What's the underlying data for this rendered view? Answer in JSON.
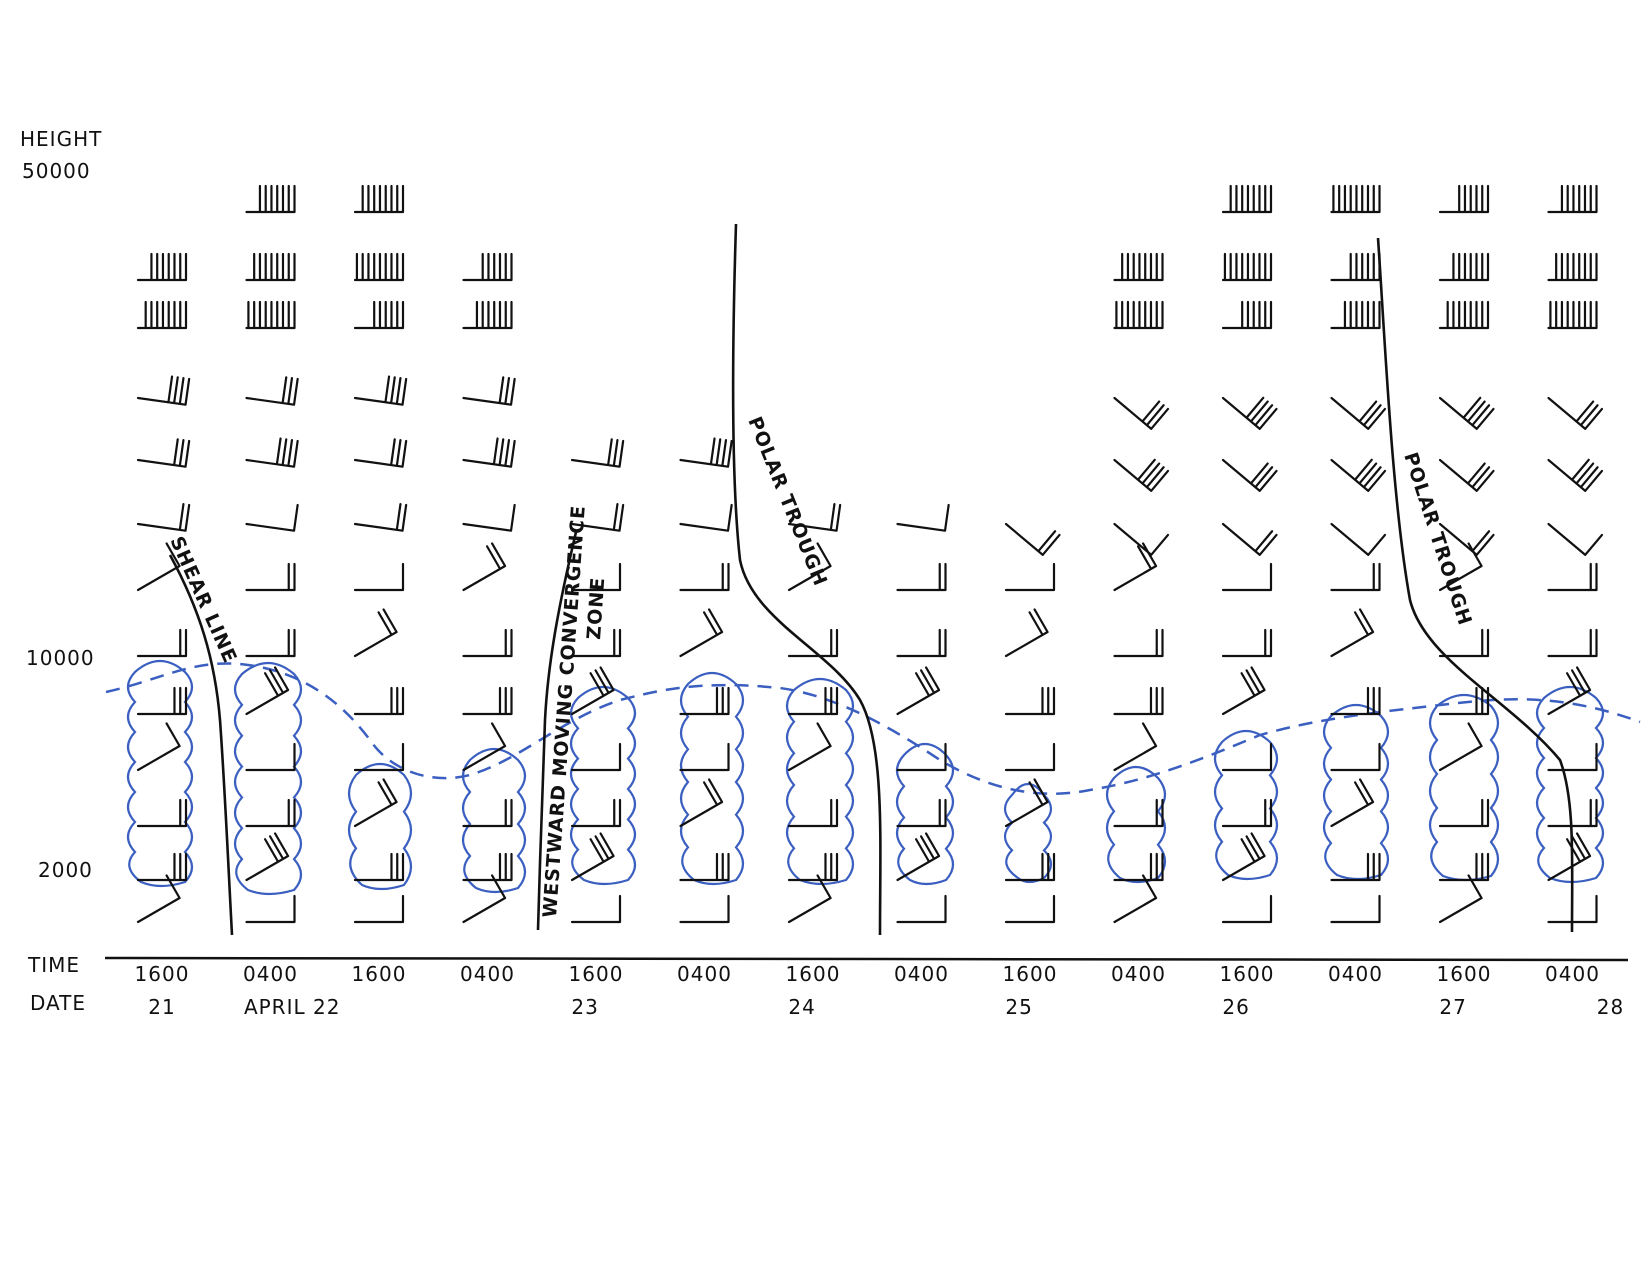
{
  "axis": {
    "height_title": "HEIGHT",
    "height_labels": [
      "50000",
      "10000",
      "2000"
    ],
    "time_title": "TIME",
    "date_title": "DATE"
  },
  "times": [
    "1600",
    "0400",
    "1600",
    "0400",
    "1600",
    "0400",
    "1600",
    "0400",
    "1600",
    "0400",
    "1600",
    "0400",
    "1600",
    "0400"
  ],
  "dates": [
    {
      "label": "21",
      "at_column": 0
    },
    {
      "label": "APRIL 22",
      "at_column": 1.2
    },
    {
      "label": "23",
      "at_column": 3.9
    },
    {
      "label": "24",
      "at_column": 5.9
    },
    {
      "label": "25",
      "at_column": 7.9
    },
    {
      "label": "26",
      "at_column": 9.9
    },
    {
      "label": "27",
      "at_column": 11.9
    },
    {
      "label": "28",
      "at_column": 13.35
    }
  ],
  "features": [
    {
      "id": "shear-line",
      "label": "SHEAR LINE"
    },
    {
      "id": "westward-moving-convergence-zone",
      "label_line1": "WESTWARD MOVING CONVERGENCE",
      "label_line2": "ZONE"
    },
    {
      "id": "polar-trough-1",
      "label": "POLAR TROUGH"
    },
    {
      "id": "polar-trough-2",
      "label": "POLAR TROUGH"
    }
  ],
  "colors": {
    "ink": "#111111",
    "cloud": "#3b5fc0"
  }
}
